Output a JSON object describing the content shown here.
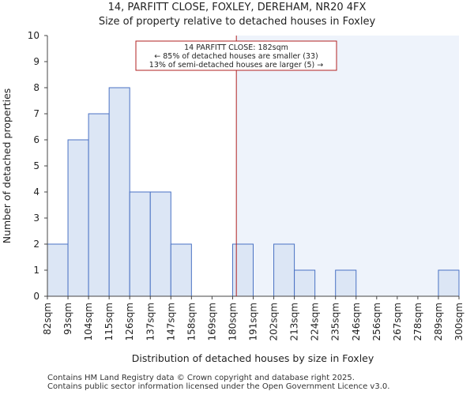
{
  "chart_data": {
    "type": "bar",
    "title": "14, PARFITT CLOSE, FOXLEY, DEREHAM, NR20 4FX",
    "subtitle": "Size of property relative to detached houses in Foxley",
    "xlabel": "Distribution of detached houses by size in Foxley",
    "ylabel": "Number of detached properties",
    "ylim": [
      0,
      10
    ],
    "yticks": [
      "0",
      "1",
      "2",
      "3",
      "4",
      "5",
      "6",
      "7",
      "8",
      "9",
      "10"
    ],
    "bin_edges": [
      "82sqm",
      "93sqm",
      "104sqm",
      "115sqm",
      "126sqm",
      "137sqm",
      "147sqm",
      "158sqm",
      "169sqm",
      "180sqm",
      "191sqm",
      "202sqm",
      "213sqm",
      "224sqm",
      "235sqm",
      "246sqm",
      "256sqm",
      "267sqm",
      "278sqm",
      "289sqm",
      "300sqm"
    ],
    "values": [
      2,
      6,
      7,
      8,
      4,
      4,
      2,
      0,
      0,
      2,
      0,
      2,
      1,
      0,
      1,
      0,
      0,
      0,
      0,
      1
    ],
    "marker_value": 182,
    "marker_label": "14 PARFITT CLOSE: 182sqm",
    "annotation_lines": [
      "14 PARFITT CLOSE: 182sqm",
      "← 85% of detached houses are smaller (33)",
      "13% of semi-detached houses are larger (5) →"
    ],
    "colors": {
      "bar_fill": "#dce6f5",
      "bar_stroke": "#4a72c4",
      "highlight_bg": "#eef3fb",
      "marker": "#b22222",
      "axis": "#444444"
    }
  },
  "footer": {
    "line1": "Contains HM Land Registry data © Crown copyright and database right 2025.",
    "line2": "Contains public sector information licensed under the Open Government Licence v3.0."
  }
}
